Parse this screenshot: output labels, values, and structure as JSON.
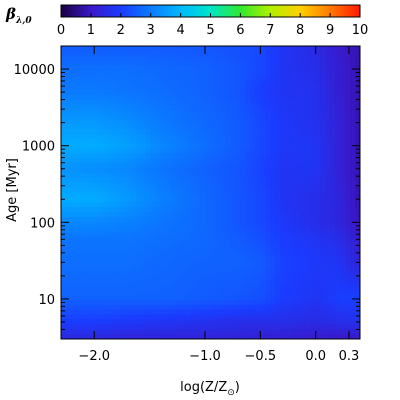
{
  "chart_data": {
    "type": "heatmap",
    "colorbar": {
      "label": "β",
      "label_subscript": "λ,0",
      "range": [
        0,
        10
      ],
      "ticks": [
        "0",
        "1",
        "2",
        "3",
        "4",
        "5",
        "6",
        "7",
        "8",
        "9",
        "10"
      ],
      "colors": [
        "#1a0040",
        "#3a18c8",
        "#1a3cff",
        "#0a7bff",
        "#00b8ff",
        "#00e6c8",
        "#30e830",
        "#b0f000",
        "#ffd000",
        "#ff7a00",
        "#ff1a00"
      ]
    },
    "x_axis": {
      "label": "log(Z/Z",
      "label_subscript": "⊙",
      "label_end": ")",
      "range": [
        -2.3,
        0.4
      ],
      "ticks": [
        {
          "value": -2.0,
          "label": "−2.0"
        },
        {
          "value": -1.0,
          "label": "−1.0"
        },
        {
          "value": -0.5,
          "label": "−0.5"
        },
        {
          "value": 0.0,
          "label": "0.0"
        },
        {
          "value": 0.3,
          "label": "0.3"
        }
      ]
    },
    "y_axis": {
      "label": "Age [Myr]",
      "scale": "log",
      "range": [
        3,
        20000
      ],
      "ticks": [
        {
          "value": 10,
          "label": "10"
        },
        {
          "value": 100,
          "label": "100"
        },
        {
          "value": 1000,
          "label": "1000"
        },
        {
          "value": 10000,
          "label": "10000"
        }
      ]
    },
    "approximate_field": {
      "x": [
        -2.3,
        -2.0,
        -1.7,
        -1.4,
        -1.0,
        -0.7,
        -0.5,
        -0.3,
        0.0,
        0.2,
        0.4
      ],
      "age_myr": [
        3,
        5,
        10,
        30,
        60,
        100,
        200,
        500,
        1000,
        2000,
        5000,
        10000,
        20000
      ],
      "beta": [
        [
          1.4,
          1.4,
          1.3,
          1.3,
          1.3,
          1.3,
          1.2,
          1.2,
          1.1,
          1.0,
          1.0
        ],
        [
          2.0,
          2.0,
          1.9,
          1.8,
          1.7,
          1.6,
          1.6,
          1.6,
          1.5,
          1.6,
          1.7
        ],
        [
          2.6,
          2.6,
          2.6,
          2.6,
          2.5,
          2.4,
          2.3,
          2.0,
          1.8,
          2.0,
          2.1
        ],
        [
          2.8,
          2.8,
          2.8,
          2.7,
          2.6,
          2.6,
          2.5,
          2.1,
          1.9,
          1.8,
          1.3
        ],
        [
          2.9,
          2.9,
          2.9,
          2.8,
          2.7,
          2.5,
          2.3,
          2.0,
          1.8,
          1.6,
          1.1
        ],
        [
          3.2,
          3.2,
          3.1,
          2.9,
          2.7,
          2.4,
          2.2,
          1.9,
          1.6,
          1.4,
          0.9
        ],
        [
          3.8,
          3.8,
          3.5,
          3.1,
          2.7,
          2.4,
          2.2,
          1.8,
          1.6,
          1.4,
          0.8
        ],
        [
          3.4,
          3.3,
          3.2,
          2.9,
          2.6,
          2.4,
          2.1,
          1.8,
          1.8,
          1.3,
          0.8
        ],
        [
          3.8,
          3.8,
          3.6,
          3.2,
          2.8,
          2.5,
          2.2,
          1.9,
          1.8,
          1.3,
          0.8
        ],
        [
          3.5,
          3.5,
          3.3,
          3.0,
          2.7,
          2.5,
          2.2,
          1.9,
          1.7,
          1.3,
          0.8
        ],
        [
          3.0,
          3.0,
          2.9,
          2.8,
          2.6,
          2.4,
          2.0,
          1.8,
          1.7,
          1.2,
          0.8
        ],
        [
          2.8,
          2.8,
          2.8,
          2.7,
          2.6,
          2.4,
          2.2,
          1.8,
          1.6,
          1.2,
          0.8
        ],
        [
          2.5,
          2.5,
          2.5,
          2.5,
          2.4,
          2.3,
          2.2,
          1.8,
          1.5,
          1.1,
          0.8
        ]
      ]
    }
  }
}
